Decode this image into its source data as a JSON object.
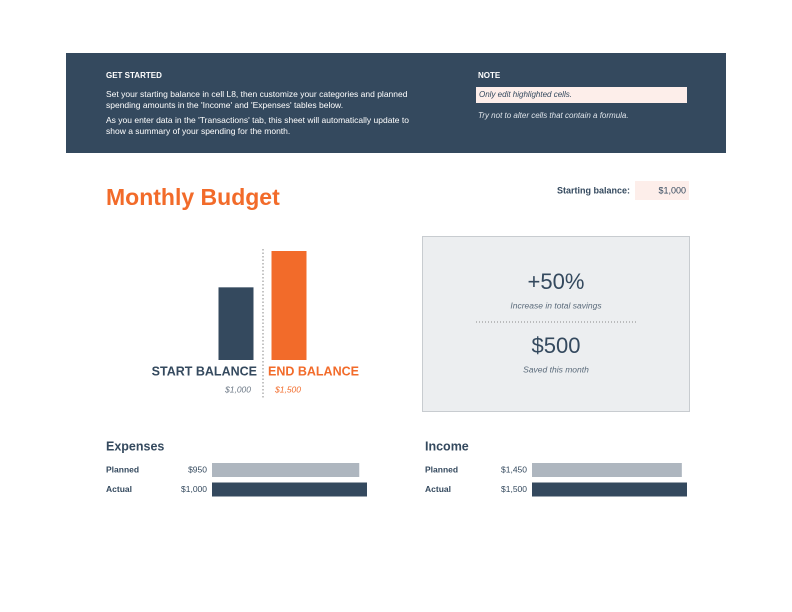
{
  "header": {
    "get_started": {
      "title": "GET STARTED",
      "paragraphs": [
        "Set your starting balance in cell L8, then customize your categories and planned spending amounts in the 'Income' and 'Expenses' tables below.",
        "As you enter data in the 'Transactions' tab, this sheet will automatically update to show a summary of your spending for the month."
      ]
    },
    "note": {
      "title": "NOTE",
      "highlight": "Only edit highlighted cells.",
      "text": "Try not to alter cells that contain a formula."
    }
  },
  "title": "Monthly Budget",
  "starting_balance": {
    "label": "Starting balance:",
    "value": 1000,
    "value_label": "$1,000"
  },
  "balance_chart": {
    "categories": [
      "START BALANCE",
      "END BALANCE"
    ],
    "values": [
      1000,
      1500
    ],
    "value_labels": [
      "$1,000",
      "$1,500"
    ],
    "colors": [
      "#34495e",
      "#f26b2a"
    ]
  },
  "summary": {
    "change": "+50%",
    "change_label": "Increase in total savings",
    "saved": "$500",
    "saved_label": "Saved this month"
  },
  "expenses": {
    "title": "Expenses",
    "rows": [
      {
        "label": "Planned",
        "value": 950,
        "value_label": "$950",
        "color": "#aeb6bf"
      },
      {
        "label": "Actual",
        "value": 1000,
        "value_label": "$1,000",
        "color": "#34495e"
      }
    ]
  },
  "income": {
    "title": "Income",
    "rows": [
      {
        "label": "Planned",
        "value": 1450,
        "value_label": "$1,450",
        "color": "#aeb6bf"
      },
      {
        "label": "Actual",
        "value": 1500,
        "value_label": "$1,500",
        "color": "#34495e"
      }
    ]
  }
}
